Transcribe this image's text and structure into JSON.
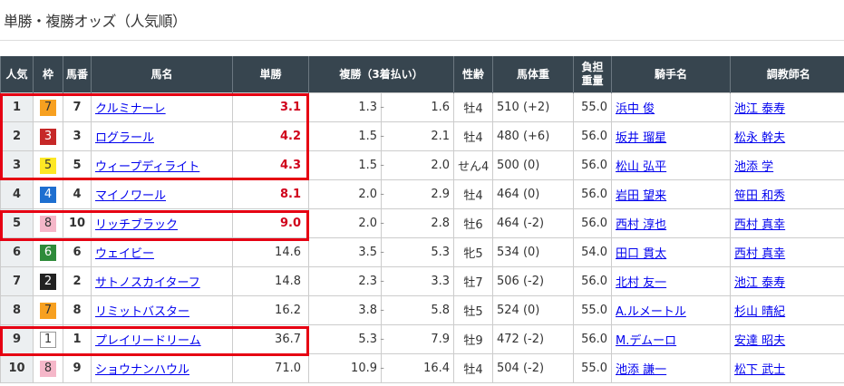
{
  "title": "単勝・複勝オッズ（人気順）",
  "headers": [
    "人気",
    "枠",
    "馬番",
    "馬名",
    "単勝",
    "複勝（3着払い）",
    "性齢",
    "馬体重",
    "負担重量",
    "騎手名",
    "調教師名"
  ],
  "waku_colors": {
    "1": [
      "#ffffff",
      "#333333"
    ],
    "2": [
      "#222222",
      "#ffffff"
    ],
    "3": [
      "#c62828",
      "#ffffff"
    ],
    "4": [
      "#1e6fd0",
      "#ffffff"
    ],
    "5": [
      "#fde725",
      "#333333"
    ],
    "6": [
      "#2e8b3a",
      "#ffffff"
    ],
    "7": [
      "#f7a020",
      "#333333"
    ],
    "8": [
      "#f5b7c9",
      "#333333"
    ]
  },
  "highlight_color": "#e60012",
  "rows": [
    {
      "pop": "1",
      "waku": "7",
      "num": "7",
      "name": "クルミナーレ",
      "win": "3.1",
      "hot": true,
      "pl": "1.3",
      "ph": "1.6",
      "sex": "牡4",
      "weight": "510 (+2)",
      "load": "55.0",
      "jockey": "浜中 俊",
      "trainer": "池江 泰寿"
    },
    {
      "pop": "2",
      "waku": "3",
      "num": "3",
      "name": "ログラール",
      "win": "4.2",
      "hot": true,
      "pl": "1.5",
      "ph": "2.1",
      "sex": "牡4",
      "weight": "480 (+6)",
      "load": "56.0",
      "jockey": "坂井 瑠星",
      "trainer": "松永 幹夫"
    },
    {
      "pop": "3",
      "waku": "5",
      "num": "5",
      "name": "ウィープディライト",
      "win": "4.3",
      "hot": true,
      "pl": "1.5",
      "ph": "2.0",
      "sex": "せん4",
      "weight": "500 (0)",
      "load": "56.0",
      "jockey": "松山 弘平",
      "trainer": "池添 学"
    },
    {
      "pop": "4",
      "waku": "4",
      "num": "4",
      "name": "マイノワール",
      "win": "8.1",
      "hot": true,
      "pl": "2.0",
      "ph": "2.9",
      "sex": "牡4",
      "weight": "464 (0)",
      "load": "56.0",
      "jockey": "岩田 望来",
      "trainer": "笹田 和秀"
    },
    {
      "pop": "5",
      "waku": "8",
      "num": "10",
      "name": "リッチブラック",
      "win": "9.0",
      "hot": true,
      "pl": "2.0",
      "ph": "2.8",
      "sex": "牡6",
      "weight": "464 (-2)",
      "load": "56.0",
      "jockey": "西村 淳也",
      "trainer": "西村 真幸"
    },
    {
      "pop": "6",
      "waku": "6",
      "num": "6",
      "name": "ウェイビー",
      "win": "14.6",
      "hot": false,
      "pl": "3.5",
      "ph": "5.3",
      "sex": "牝5",
      "weight": "534 (0)",
      "load": "54.0",
      "jockey": "田口 貫太",
      "trainer": "西村 真幸"
    },
    {
      "pop": "7",
      "waku": "2",
      "num": "2",
      "name": "サトノスカイターフ",
      "win": "14.8",
      "hot": false,
      "pl": "2.3",
      "ph": "3.3",
      "sex": "牡7",
      "weight": "506 (-2)",
      "load": "56.0",
      "jockey": "北村 友一",
      "trainer": "池江 泰寿"
    },
    {
      "pop": "8",
      "waku": "7",
      "num": "8",
      "name": "リミットバスター",
      "win": "16.2",
      "hot": false,
      "pl": "3.8",
      "ph": "5.8",
      "sex": "牡5",
      "weight": "524 (0)",
      "load": "55.0",
      "jockey": "A.ルメートル",
      "trainer": "杉山 晴紀"
    },
    {
      "pop": "9",
      "waku": "1",
      "num": "1",
      "name": "プレイリードリーム",
      "win": "36.7",
      "hot": false,
      "pl": "5.3",
      "ph": "7.9",
      "sex": "牡9",
      "weight": "472 (-2)",
      "load": "56.0",
      "jockey": "M.デムーロ",
      "trainer": "安達 昭夫"
    },
    {
      "pop": "10",
      "waku": "8",
      "num": "9",
      "name": "ショウナンハウル",
      "win": "71.0",
      "hot": false,
      "pl": "10.9",
      "ph": "16.4",
      "sex": "牡4",
      "weight": "504 (-2)",
      "load": "55.0",
      "jockey": "池添 謙一",
      "trainer": "松下 武士"
    }
  ]
}
